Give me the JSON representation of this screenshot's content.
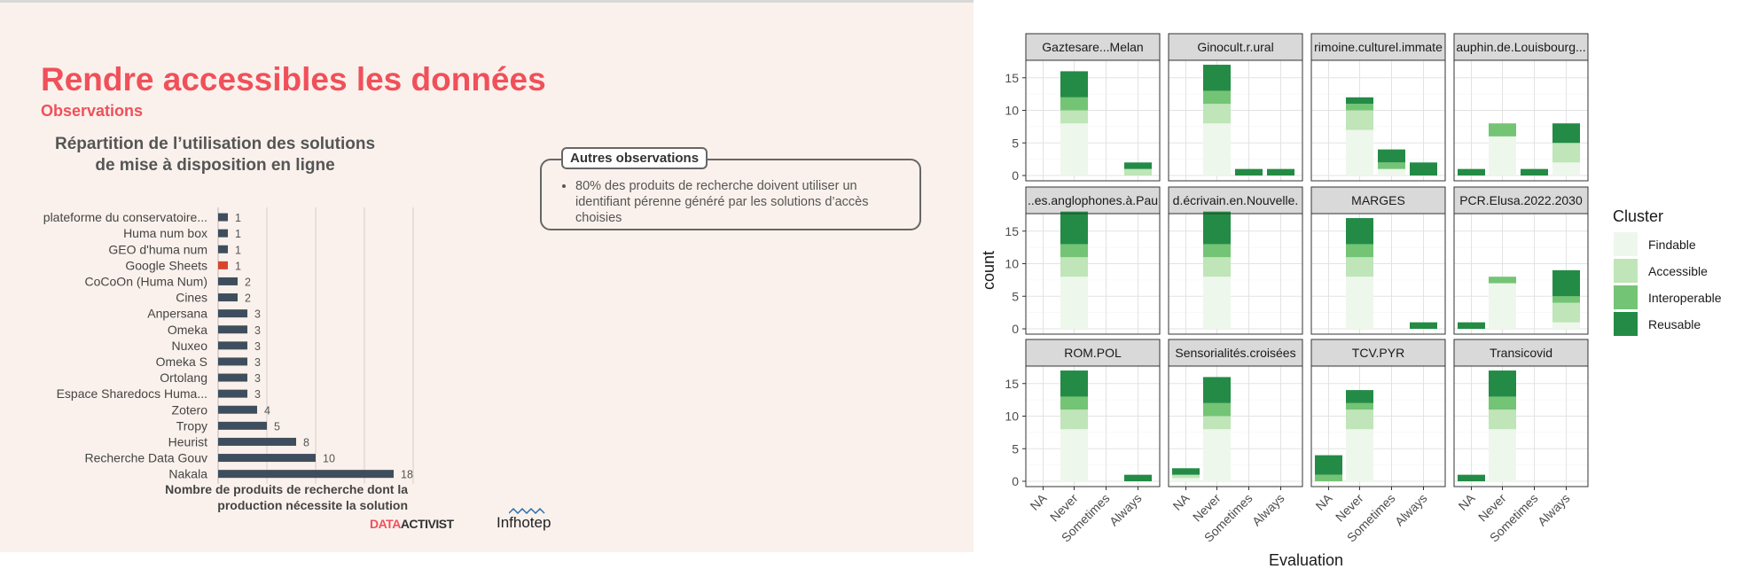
{
  "slide": {
    "title": "Rendre accessibles les données",
    "subtitle": "Observations",
    "observations_title": "Autres observations",
    "observations": [
      "80% des produits de recherche doivent utiliser un identifiant pérenne généré par les solutions d’accès choisies"
    ],
    "logos": {
      "datactivist_a": "DATA",
      "datactivist_b": "ACTIVIST",
      "infhotep": "Infhotep"
    }
  },
  "chart_data": [
    {
      "type": "bar",
      "orientation": "horizontal",
      "title": "Répartition de l’utilisation des solutions de mise à disposition en ligne",
      "xlabel": "Nombre de produits de recherche dont la production nécessite la solution",
      "ylabel": "",
      "xlim": [
        0,
        20
      ],
      "grid": true,
      "categories": [
        "plateforme du conservatoire...",
        "Huma num box",
        "GEO d'huma num",
        "Google Sheets",
        "CoCoOn (Huma Num)",
        "Cines",
        "Anpersana",
        "Omeka",
        "Nuxeo",
        "Omeka S",
        "Ortolang",
        "Espace Sharedocs Huma...",
        "Zotero",
        "Tropy",
        "Heurist",
        "Recherche Data Gouv",
        "Nakala"
      ],
      "values": [
        1,
        1,
        1,
        1,
        2,
        2,
        3,
        3,
        3,
        3,
        3,
        3,
        4,
        5,
        8,
        10,
        18
      ],
      "colors": {
        "default": "#3f4e5c",
        "highlight": "#d8452e"
      },
      "highlight_index": 3
    },
    {
      "type": "bar",
      "stacked": true,
      "facets": [
        "Gaztesare...Melan",
        "Ginocult.r.ural",
        "rimoine.culturel.immate",
        "auphin.de.Louisbourg...",
        "..es.anglophones.à.Pau",
        "d.écrivain.en.Nouvelle.",
        "MARGES",
        "PCR.Elusa.2022.2030",
        "ROM.POL",
        "Sensorialités.croisées",
        "TCV.PYR",
        "Transicovid"
      ],
      "categories": [
        "NA",
        "Never",
        "Sometimes",
        "Always"
      ],
      "xlabel": "Evaluation",
      "ylabel": "count",
      "yticks": [
        0,
        5,
        10,
        15
      ],
      "ylim": [
        0,
        19
      ],
      "legend": {
        "title": "Cluster",
        "position": "right"
      },
      "series": [
        {
          "name": "Findable",
          "color": "#eef7ec",
          "values": [
            [
              0,
              8,
              0,
              0
            ],
            [
              0,
              8,
              0,
              0
            ],
            [
              0,
              7,
              1,
              0
            ],
            [
              0,
              6,
              0,
              2
            ],
            [
              0,
              8,
              0,
              0
            ],
            [
              0,
              8,
              0,
              0
            ],
            [
              0,
              8,
              0,
              0
            ],
            [
              0,
              7,
              0,
              1
            ],
            [
              0,
              8,
              0,
              0
            ],
            [
              0.5,
              8,
              0,
              0
            ],
            [
              0,
              8,
              0,
              0
            ],
            [
              0,
              8,
              0,
              0
            ]
          ]
        },
        {
          "name": "Accessible",
          "color": "#bfe5b8",
          "values": [
            [
              0,
              2,
              0,
              1
            ],
            [
              0,
              3,
              0,
              0
            ],
            [
              0,
              3,
              0,
              0
            ],
            [
              0,
              0,
              0,
              3
            ],
            [
              0,
              3,
              0,
              0
            ],
            [
              0,
              3,
              0,
              0
            ],
            [
              0,
              3,
              0,
              0
            ],
            [
              0,
              0,
              0,
              3
            ],
            [
              0,
              3,
              0,
              0
            ],
            [
              0.5,
              2,
              0,
              0
            ],
            [
              0,
              3,
              0,
              0
            ],
            [
              0,
              3,
              0,
              0
            ]
          ]
        },
        {
          "name": "Interoperable",
          "color": "#74c476",
          "values": [
            [
              0,
              2,
              0,
              0
            ],
            [
              0,
              2,
              0,
              0
            ],
            [
              0,
              1,
              1,
              0
            ],
            [
              0,
              2,
              0,
              0
            ],
            [
              0,
              2,
              0,
              0
            ],
            [
              0,
              2,
              0,
              0
            ],
            [
              0,
              2,
              0,
              0
            ],
            [
              0,
              1,
              0,
              1
            ],
            [
              0,
              2,
              0,
              0
            ],
            [
              0,
              2,
              0,
              0
            ],
            [
              1,
              1,
              0,
              0
            ],
            [
              0,
              2,
              0,
              0
            ]
          ]
        },
        {
          "name": "Reusable",
          "color": "#238b45",
          "values": [
            [
              0,
              4,
              0,
              1
            ],
            [
              0,
              4,
              1,
              1
            ],
            [
              0,
              1,
              2,
              2
            ],
            [
              1,
              0,
              1,
              3
            ],
            [
              0,
              5,
              0,
              0
            ],
            [
              0,
              5,
              0,
              0
            ],
            [
              0,
              4,
              0,
              1
            ],
            [
              1,
              0,
              0,
              4
            ],
            [
              0,
              4,
              0,
              1
            ],
            [
              1,
              4,
              0,
              0
            ],
            [
              3,
              2,
              0,
              0
            ],
            [
              1,
              4,
              0,
              0
            ]
          ]
        }
      ]
    }
  ]
}
